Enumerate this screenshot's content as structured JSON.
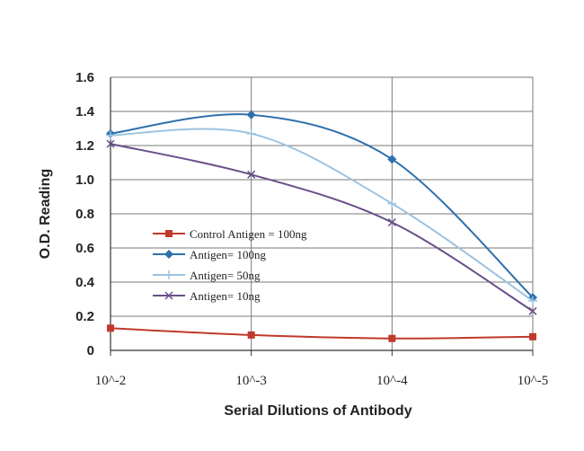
{
  "chart_data": {
    "type": "line",
    "title": "",
    "xlabel": "Serial Dilutions of Antibody",
    "ylabel": "O.D. Reading",
    "categories": [
      "10^-2",
      "10^-3",
      "10^-4",
      "10^-5"
    ],
    "ylim": [
      0,
      1.6
    ],
    "yticks": [
      "0",
      "0.2",
      "0.4",
      "0.6",
      "0.8",
      "1.0",
      "1.2",
      "1.4",
      "1.6"
    ],
    "grid": true,
    "legend_position": "center-left",
    "series": [
      {
        "name": "Control Antigen = 100ng",
        "values": [
          0.13,
          0.09,
          0.07,
          0.08
        ],
        "color": "#c0392b",
        "marker": "square"
      },
      {
        "name": "Antigen= 100ng",
        "values": [
          1.27,
          1.38,
          1.12,
          0.31
        ],
        "color": "#2e6fad",
        "marker": "diamond"
      },
      {
        "name": "Antigen= 50ng",
        "values": [
          1.26,
          1.27,
          0.86,
          0.29
        ],
        "color": "#9cc3e0",
        "marker": "plus"
      },
      {
        "name": "Antigen= 10ng",
        "values": [
          1.21,
          1.03,
          0.75,
          0.23
        ],
        "color": "#6a4f8a",
        "marker": "cross"
      }
    ]
  }
}
